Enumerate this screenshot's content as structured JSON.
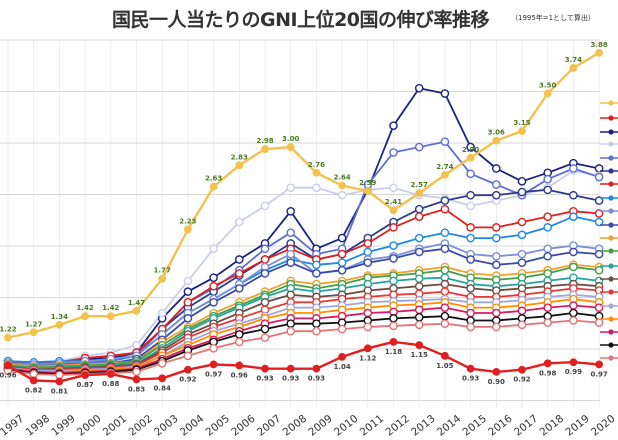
{
  "chart_data": {
    "type": "line",
    "title": "国民一人当たりのGNI上位20国の伸び率推移",
    "subtitle": "（1995年=1として算出）",
    "x": [
      "1997",
      "1998",
      "1999",
      "2000",
      "2001",
      "2002",
      "2003",
      "2004",
      "2005",
      "2006",
      "2007",
      "2008",
      "2009",
      "2010",
      "2011",
      "2012",
      "2013",
      "2014",
      "2015",
      "2016",
      "2017",
      "2018",
      "2019",
      "2020"
    ],
    "ylim": [
      0.6,
      4.0
    ],
    "grid": true,
    "legend": "right (flag markers, labels not legible)",
    "series": [
      {
        "color": "#f2c14e",
        "labeled": true,
        "values": [
          1.22,
          1.27,
          1.34,
          1.42,
          1.42,
          1.47,
          1.77,
          2.23,
          2.63,
          2.83,
          2.98,
          3.0,
          2.76,
          2.64,
          2.59,
          2.41,
          2.57,
          2.74,
          2.9,
          3.06,
          3.15,
          3.5,
          3.74,
          3.88
        ]
      },
      {
        "color": "#e02020",
        "labeled": true,
        "values": [
          0.96,
          0.82,
          0.81,
          0.87,
          0.88,
          0.83,
          0.84,
          0.92,
          0.97,
          0.96,
          0.93,
          0.93,
          0.93,
          1.04,
          1.12,
          1.18,
          1.15,
          1.05,
          0.93,
          0.9,
          0.92,
          0.98,
          0.99,
          0.97
        ]
      },
      {
        "color": "#1a237e",
        "labeled": false,
        "values": [
          1.0,
          0.97,
          0.98,
          1.02,
          1.03,
          1.08,
          1.4,
          1.65,
          1.78,
          1.95,
          2.1,
          2.4,
          2.05,
          2.15,
          2.6,
          3.2,
          3.55,
          3.5,
          3.0,
          2.8,
          2.68,
          2.76,
          2.85,
          2.8
        ]
      },
      {
        "color": "#c9cde8",
        "labeled": false,
        "values": [
          1.0,
          0.98,
          1.0,
          1.05,
          1.08,
          1.15,
          1.45,
          1.75,
          2.05,
          2.3,
          2.45,
          2.62,
          2.62,
          2.55,
          2.6,
          2.62,
          2.55,
          2.52,
          2.45,
          2.5,
          2.55,
          2.62,
          2.78,
          2.73
        ]
      },
      {
        "color": "#5b6fd6",
        "labeled": false,
        "values": [
          1.0,
          0.97,
          0.96,
          0.98,
          1.0,
          1.05,
          1.3,
          1.55,
          1.68,
          1.85,
          2.05,
          2.2,
          2.0,
          2.05,
          2.65,
          2.95,
          3.0,
          3.05,
          2.75,
          2.65,
          2.55,
          2.7,
          2.8,
          2.72
        ]
      },
      {
        "color": "#2b3a8a",
        "labeled": false,
        "values": [
          0.98,
          0.96,
          0.97,
          1.0,
          1.02,
          1.08,
          1.3,
          1.5,
          1.65,
          1.8,
          1.95,
          2.1,
          1.95,
          2.0,
          2.15,
          2.3,
          2.42,
          2.5,
          2.55,
          2.55,
          2.58,
          2.6,
          2.55,
          2.5
        ]
      },
      {
        "color": "#e02020",
        "labeled": false,
        "values": [
          1.0,
          0.98,
          0.99,
          1.03,
          1.05,
          1.08,
          1.3,
          1.55,
          1.7,
          1.82,
          1.95,
          2.05,
          1.95,
          2.0,
          2.1,
          2.25,
          2.35,
          2.42,
          2.25,
          2.25,
          2.3,
          2.35,
          2.4,
          2.38
        ]
      },
      {
        "color": "#1e88e5",
        "labeled": false,
        "values": [
          1.0,
          0.99,
          1.0,
          1.0,
          1.01,
          1.05,
          1.25,
          1.45,
          1.58,
          1.72,
          1.85,
          1.95,
          1.9,
          1.92,
          2.02,
          2.08,
          2.15,
          2.2,
          2.15,
          2.15,
          2.18,
          2.25,
          2.35,
          2.3
        ]
      },
      {
        "color": "#7b8fd8",
        "labeled": false,
        "values": [
          0.98,
          0.97,
          0.98,
          1.0,
          1.02,
          1.05,
          1.25,
          1.45,
          1.58,
          1.72,
          1.88,
          2.0,
          1.82,
          1.85,
          1.95,
          1.98,
          2.05,
          2.1,
          2.0,
          1.98,
          2.0,
          2.05,
          2.08,
          2.05
        ]
      },
      {
        "color": "#3949ab",
        "labeled": false,
        "values": [
          0.97,
          0.95,
          0.95,
          0.97,
          0.98,
          1.02,
          1.2,
          1.4,
          1.55,
          1.68,
          1.82,
          1.92,
          1.82,
          1.85,
          1.92,
          1.96,
          2.02,
          2.05,
          1.95,
          1.9,
          1.92,
          1.98,
          2.02,
          2.0
        ]
      },
      {
        "color": "#f0a030",
        "labeled": false,
        "values": [
          0.97,
          0.95,
          0.96,
          0.97,
          0.98,
          1.0,
          1.18,
          1.32,
          1.45,
          1.55,
          1.65,
          1.75,
          1.72,
          1.75,
          1.8,
          1.82,
          1.85,
          1.88,
          1.82,
          1.8,
          1.82,
          1.85,
          1.9,
          1.88
        ]
      },
      {
        "color": "#43a047",
        "labeled": false,
        "values": [
          0.96,
          0.94,
          0.95,
          0.96,
          0.97,
          1.0,
          1.15,
          1.3,
          1.42,
          1.52,
          1.62,
          1.72,
          1.68,
          1.72,
          1.78,
          1.8,
          1.82,
          1.85,
          1.78,
          1.76,
          1.78,
          1.82,
          1.88,
          1.85
        ]
      },
      {
        "color": "#26a69a",
        "labeled": false,
        "values": [
          0.95,
          0.93,
          0.94,
          0.95,
          0.96,
          0.98,
          1.12,
          1.28,
          1.4,
          1.5,
          1.6,
          1.68,
          1.65,
          1.68,
          1.72,
          1.75,
          1.77,
          1.78,
          1.72,
          1.7,
          1.72,
          1.75,
          1.78,
          1.75
        ]
      },
      {
        "color": "#6d4c41",
        "labeled": false,
        "values": [
          0.95,
          0.92,
          0.93,
          0.94,
          0.95,
          0.97,
          1.1,
          1.25,
          1.35,
          1.45,
          1.55,
          1.62,
          1.6,
          1.62,
          1.66,
          1.68,
          1.7,
          1.72,
          1.68,
          1.66,
          1.68,
          1.7,
          1.72,
          1.7
        ]
      },
      {
        "color": "#e53935",
        "labeled": false,
        "values": [
          0.94,
          0.92,
          0.92,
          0.93,
          0.94,
          0.96,
          1.08,
          1.22,
          1.32,
          1.4,
          1.48,
          1.55,
          1.55,
          1.58,
          1.6,
          1.62,
          1.63,
          1.65,
          1.6,
          1.6,
          1.62,
          1.65,
          1.68,
          1.66
        ]
      },
      {
        "color": "#9fa8da",
        "labeled": false,
        "values": [
          0.94,
          0.91,
          0.91,
          0.92,
          0.93,
          0.95,
          1.05,
          1.18,
          1.28,
          1.35,
          1.42,
          1.5,
          1.5,
          1.52,
          1.55,
          1.56,
          1.57,
          1.58,
          1.55,
          1.55,
          1.57,
          1.6,
          1.62,
          1.6
        ]
      },
      {
        "color": "#ff8f00",
        "labeled": false,
        "values": [
          0.93,
          0.9,
          0.9,
          0.91,
          0.92,
          0.94,
          1.05,
          1.15,
          1.25,
          1.32,
          1.4,
          1.45,
          1.45,
          1.48,
          1.5,
          1.52,
          1.53,
          1.55,
          1.5,
          1.5,
          1.52,
          1.55,
          1.58,
          1.55
        ]
      },
      {
        "color": "#d81b60",
        "labeled": false,
        "values": [
          0.93,
          0.9,
          0.89,
          0.9,
          0.91,
          0.93,
          1.02,
          1.12,
          1.2,
          1.28,
          1.35,
          1.4,
          1.4,
          1.42,
          1.45,
          1.46,
          1.48,
          1.5,
          1.45,
          1.45,
          1.47,
          1.5,
          1.52,
          1.5
        ]
      },
      {
        "color": "#111111",
        "labeled": false,
        "values": [
          0.92,
          0.89,
          0.88,
          0.89,
          0.9,
          0.92,
          1.0,
          1.1,
          1.18,
          1.25,
          1.3,
          1.35,
          1.35,
          1.36,
          1.38,
          1.4,
          1.41,
          1.42,
          1.38,
          1.38,
          1.4,
          1.42,
          1.45,
          1.42
        ]
      },
      {
        "color": "#e57373",
        "labeled": false,
        "values": [
          0.91,
          0.88,
          0.87,
          0.88,
          0.89,
          0.9,
          0.98,
          1.05,
          1.12,
          1.18,
          1.22,
          1.28,
          1.28,
          1.3,
          1.32,
          1.33,
          1.34,
          1.35,
          1.32,
          1.32,
          1.34,
          1.36,
          1.38,
          1.36
        ]
      }
    ]
  }
}
